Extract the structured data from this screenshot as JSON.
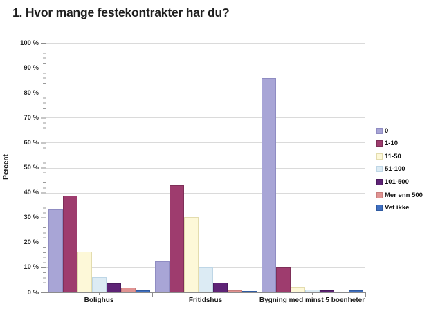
{
  "title": "1. Hvor mange festekontrakter har du?",
  "chart_data": {
    "type": "bar",
    "title": "1. Hvor mange festekontrakter har du?",
    "ylabel": "Percent",
    "xlabel": "",
    "categories": [
      "Bolighus",
      "Fritidshus",
      "Bygning med minst 5 boenheter"
    ],
    "series": [
      {
        "name": "0",
        "color": "#a8a5d6",
        "border": "#8f8cc2",
        "values": [
          33.3,
          12.4,
          86.0
        ]
      },
      {
        "name": "1-10",
        "color": "#9e3c6e",
        "border": "#7e2f58",
        "values": [
          38.8,
          43.0,
          10.0
        ]
      },
      {
        "name": "11-50",
        "color": "#fdf8d8",
        "border": "#e3dcae",
        "values": [
          16.3,
          30.2,
          2.3
        ]
      },
      {
        "name": "51-100",
        "color": "#dcebf4",
        "border": "#bed6e6",
        "values": [
          6.2,
          10.0,
          1.2
        ]
      },
      {
        "name": "101-500",
        "color": "#5e2376",
        "border": "#4a1b5e",
        "values": [
          3.6,
          3.9,
          0.9
        ]
      },
      {
        "name": "Mer enn 500",
        "color": "#e09392",
        "border": "#c97e7d",
        "values": [
          2.0,
          0.9,
          0.0
        ]
      },
      {
        "name": "Vet ikke",
        "color": "#3f6fc1",
        "border": "#2f5aa0",
        "values": [
          0.8,
          0.5,
          0.9
        ]
      }
    ],
    "ylim": [
      0,
      100
    ],
    "ytick_step": 10,
    "ytick_suffix": " %",
    "grid": true,
    "legend_position": "right"
  }
}
